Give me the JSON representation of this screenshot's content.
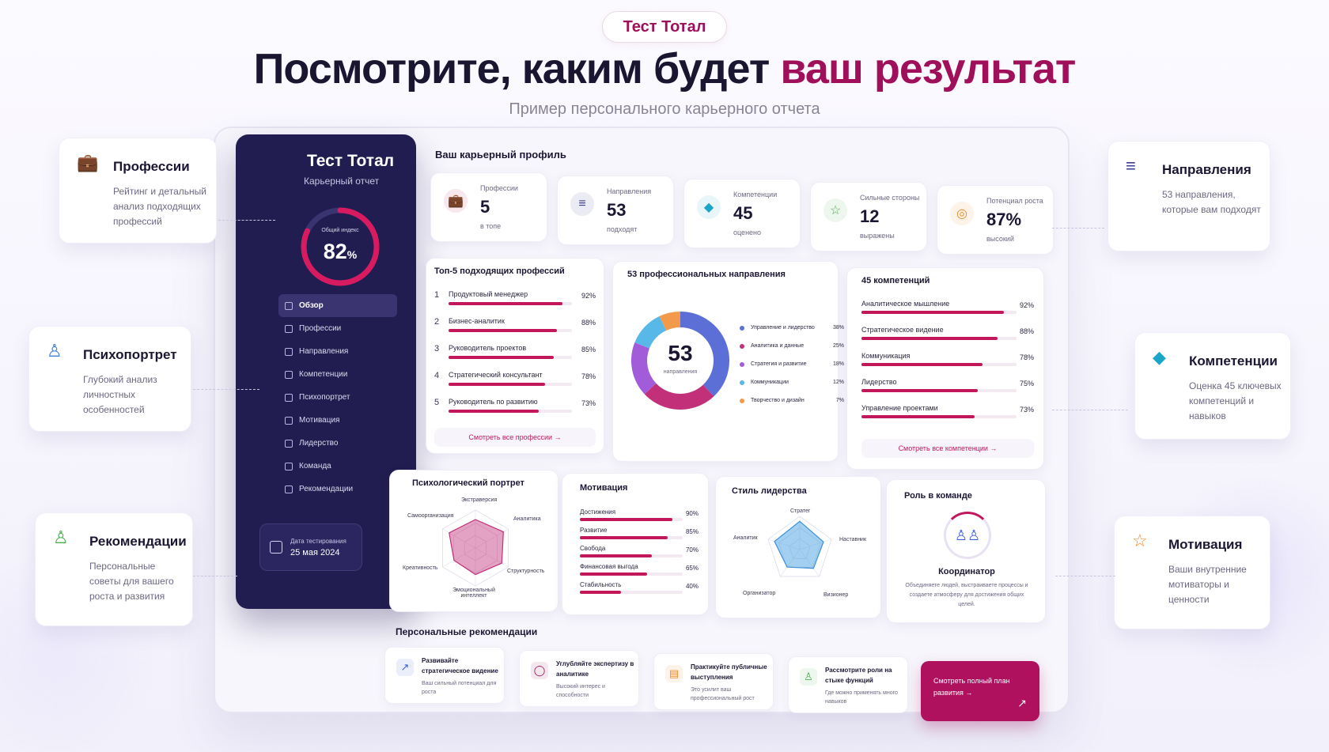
{
  "header": {
    "badge": "Тест Тотал",
    "headline_main": "Посмотрите, каким будет ",
    "headline_accent": "ваш результат",
    "subtitle": "Пример персонального карьерного отчета"
  },
  "colors": {
    "accent": "#a0105a",
    "sidebar": "#221d50",
    "bar": "#c2185b"
  },
  "sidebar": {
    "title": "Тест Тотал",
    "subtitle": "Карьерный отчет",
    "index_label": "Общий индекс",
    "index_value": "82",
    "index_unit": "%",
    "index_fraction": 0.82,
    "menu": [
      {
        "label": "Обзор",
        "icon": "overview-icon",
        "active": true
      },
      {
        "label": "Профессии",
        "icon": "professions-icon"
      },
      {
        "label": "Направления",
        "icon": "directions-icon"
      },
      {
        "label": "Компетенции",
        "icon": "competencies-icon"
      },
      {
        "label": "Психопортрет",
        "icon": "psychoportrait-icon"
      },
      {
        "label": "Мотивация",
        "icon": "motivation-icon"
      },
      {
        "label": "Лидерство",
        "icon": "leadership-icon"
      },
      {
        "label": "Команда",
        "icon": "team-icon"
      },
      {
        "label": "Рекомендации",
        "icon": "recommendations-icon"
      }
    ],
    "date_label": "Дата тестирования",
    "date_value": "25 мая 2024"
  },
  "profile": {
    "title": "Ваш карьерный профиль",
    "stats": [
      {
        "label": "Профессии",
        "value": "5",
        "caption": "в топе",
        "icon": "briefcase-icon",
        "color": "#c2185b"
      },
      {
        "label": "Направления",
        "value": "53",
        "caption": "подходят",
        "icon": "layers-icon",
        "color": "#3b3f8f"
      },
      {
        "label": "Компетенции",
        "value": "45",
        "caption": "оценено",
        "icon": "diamond-icon",
        "color": "#1ba5c9"
      },
      {
        "label": "Сильные стороны",
        "value": "12",
        "caption": "выражены",
        "icon": "star-icon",
        "color": "#4caf50"
      },
      {
        "label": "Потенциал роста",
        "value": "87%",
        "caption": "высокий",
        "icon": "target-icon",
        "color": "#f08a24"
      }
    ]
  },
  "top_professions": {
    "title": "Топ-5 подходящих профессий",
    "items": [
      {
        "rank": "1",
        "name": "Продуктовый менеджер",
        "percent": "92%",
        "value": 92
      },
      {
        "rank": "2",
        "name": "Бизнес-аналитик",
        "percent": "88%",
        "value": 88
      },
      {
        "rank": "3",
        "name": "Руководитель проектов",
        "percent": "85%",
        "value": 85
      },
      {
        "rank": "4",
        "name": "Стратегический консультант",
        "percent": "78%",
        "value": 78
      },
      {
        "rank": "5",
        "name": "Руководитель по развитию",
        "percent": "73%",
        "value": 73
      }
    ],
    "link": "Смотреть все профессии →"
  },
  "directions": {
    "title": "53 профессиональных направления",
    "center_value": "53",
    "center_label": "направления",
    "segments": [
      {
        "name": "Управление и лидерство",
        "percent": "38%",
        "value": 38,
        "color": "#5b6fd6"
      },
      {
        "name": "Аналитика и данные",
        "percent": "25%",
        "value": 25,
        "color": "#c2307a"
      },
      {
        "name": "Стратегия и развитие",
        "percent": "18%",
        "value": 18,
        "color": "#a25bd9"
      },
      {
        "name": "Коммуникации",
        "percent": "12%",
        "value": 12,
        "color": "#58b8e8"
      },
      {
        "name": "Творчество и дизайн",
        "percent": "7%",
        "value": 7,
        "color": "#f29a4a"
      }
    ]
  },
  "competencies": {
    "title": "45 компетенций",
    "items": [
      {
        "name": "Аналитическое мышление",
        "percent": "92%",
        "value": 92
      },
      {
        "name": "Стратегическое видение",
        "percent": "88%",
        "value": 88
      },
      {
        "name": "Коммуникация",
        "percent": "78%",
        "value": 78
      },
      {
        "name": "Лидерство",
        "percent": "75%",
        "value": 75
      },
      {
        "name": "Управление проектами",
        "percent": "73%",
        "value": 73
      }
    ],
    "link": "Смотреть все компетенции →"
  },
  "psych": {
    "title": "Психологический портрет",
    "axes": [
      "Экстраверсия",
      "Аналитика",
      "Структурность",
      "Эмоциональный интеллект",
      "Креативность",
      "Самоорганизация"
    ],
    "values": [
      0.75,
      0.85,
      0.8,
      0.7,
      0.65,
      0.8
    ]
  },
  "motivation": {
    "title": "Мотивация",
    "items": [
      {
        "name": "Достижения",
        "percent": "90%",
        "value": 90
      },
      {
        "name": "Развитие",
        "percent": "85%",
        "value": 85
      },
      {
        "name": "Свобода",
        "percent": "70%",
        "value": 70
      },
      {
        "name": "Финансовая выгода",
        "percent": "65%",
        "value": 65
      },
      {
        "name": "Стабильность",
        "percent": "40%",
        "value": 40
      }
    ]
  },
  "leadership": {
    "title": "Стиль лидерства",
    "axes": [
      "Стратег",
      "Наставник",
      "Визионер",
      "Организатор",
      "Аналитик"
    ],
    "values": [
      0.85,
      0.75,
      0.7,
      0.65,
      0.8
    ]
  },
  "team_role": {
    "title": "Роль в команде",
    "role": "Координатор",
    "description": "Объединяете людей, выстраиваете процессы и создаете атмосферу для достижения общих целей."
  },
  "recommendations": {
    "title": "Персональные рекомендации",
    "items": [
      {
        "title": "Развивайте стратегическое видение",
        "desc": "Ваш сильный потенциал для роста",
        "icon": "chart-up-icon",
        "color": "#3b5fd6"
      },
      {
        "title": "Углубляйте экспертизу в аналитике",
        "desc": "Высокий интерес и способности",
        "icon": "shield-icon",
        "color": "#a0105a"
      },
      {
        "title": "Практикуйте публичные выступления",
        "desc": "Это усилит ваш профессиональный рост",
        "icon": "presentation-icon",
        "color": "#f08a24"
      },
      {
        "title": "Рассмотрите роли на стыке функций",
        "desc": "Где можно применять много навыков",
        "icon": "person-icon",
        "color": "#4caf50"
      }
    ],
    "cta": "Смотреть полный план развития →"
  },
  "side_cards": [
    {
      "title": "Профессии",
      "desc": "Рейтинг и детальный анализ подходящих профессий",
      "icon": "briefcase-icon",
      "color": "#c2185b"
    },
    {
      "title": "Психопортрет",
      "desc": "Глубокий анализ личностных особенностей",
      "icon": "user-icon",
      "color": "#3f7fd6"
    },
    {
      "title": "Рекомендации",
      "desc": "Персональные советы для вашего роста и развития",
      "icon": "users-icon",
      "color": "#4caf50"
    },
    {
      "title": "Направления",
      "desc": "53 направления, которые вам подходят",
      "icon": "layers-icon",
      "color": "#3b3f8f"
    },
    {
      "title": "Компетенции",
      "desc": "Оценка 45 ключевых компетенций и навыков",
      "icon": "diamond-icon",
      "color": "#1ba5c9"
    },
    {
      "title": "Мотивация",
      "desc": "Ваши внутренние мотиваторы и ценности",
      "icon": "star-icon",
      "color": "#f08a24"
    }
  ]
}
